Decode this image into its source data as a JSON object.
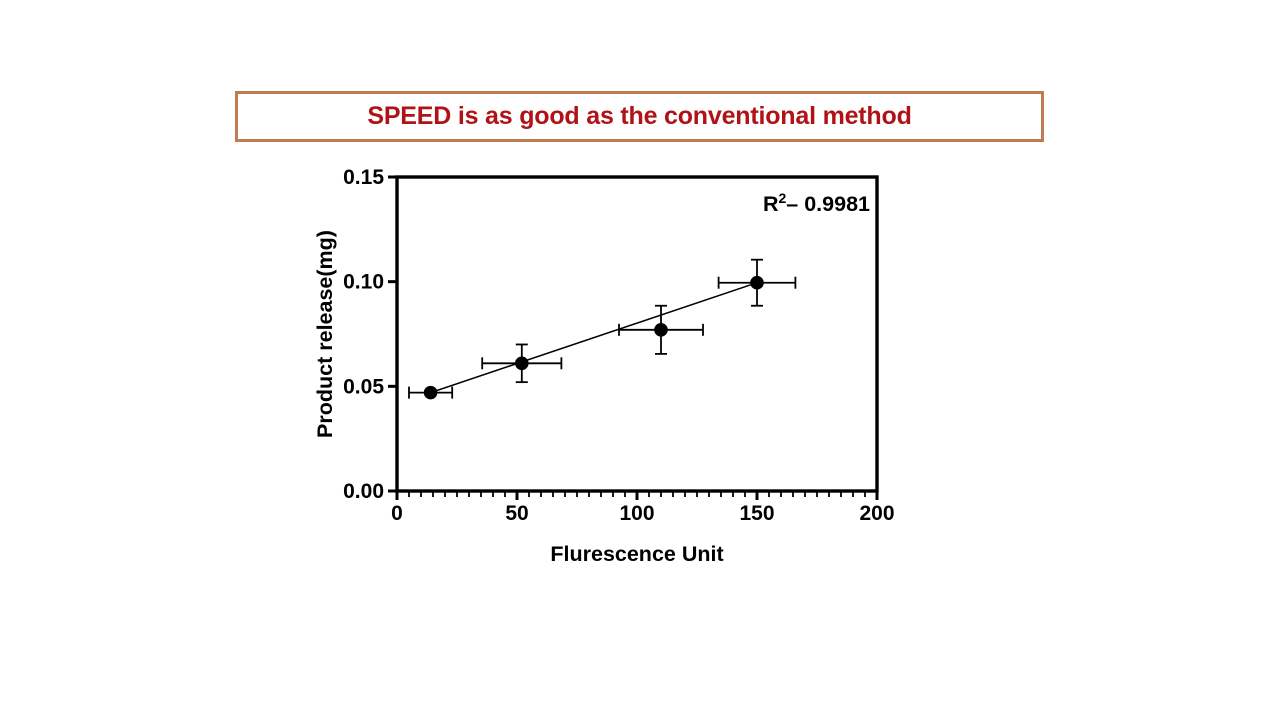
{
  "slide": {
    "background": "#ffffff",
    "title": {
      "text": "SPEED is as good as the conventional method",
      "text_color": "#b01218",
      "border_color": "#bf7b54"
    }
  },
  "chart_data": {
    "type": "scatter",
    "title": "",
    "xlabel": "Flurescence Unit",
    "ylabel": "Product release(mg)",
    "annotation": {
      "text": "R²– 0.9981",
      "base": "R",
      "sup": "2",
      "rest": "– 0.9981"
    },
    "xlim": [
      0,
      200
    ],
    "ylim": [
      0,
      0.15
    ],
    "grid": false,
    "legend_position": "none",
    "x_ticks": [
      {
        "v": 0,
        "label": "0"
      },
      {
        "v": 50,
        "label": "50"
      },
      {
        "v": 100,
        "label": "100"
      },
      {
        "v": 150,
        "label": "150"
      },
      {
        "v": 200,
        "label": "200"
      }
    ],
    "x_minor_step": 5,
    "y_ticks": [
      {
        "v": 0,
        "label": "0.00"
      },
      {
        "v": 0.05,
        "label": "0.05"
      },
      {
        "v": 0.1,
        "label": "0.10"
      },
      {
        "v": 0.15,
        "label": "0.15"
      }
    ],
    "points": [
      {
        "x": 14,
        "y": 0.047,
        "xerr": 9,
        "yerr": 0
      },
      {
        "x": 52,
        "y": 0.061,
        "xerr": 16.5,
        "yerr": 0.009
      },
      {
        "x": 110,
        "y": 0.077,
        "xerr": 17.5,
        "yerr": 0.0115
      },
      {
        "x": 150,
        "y": 0.0995,
        "xerr": 16,
        "yerr": 0.011
      }
    ],
    "trendline": {
      "x1": 14,
      "y1": 0.047,
      "x2": 150,
      "y2": 0.0995
    },
    "colors": {
      "marker": "#000000",
      "line": "#000000",
      "axis": "#000000",
      "text": "#000000"
    }
  }
}
